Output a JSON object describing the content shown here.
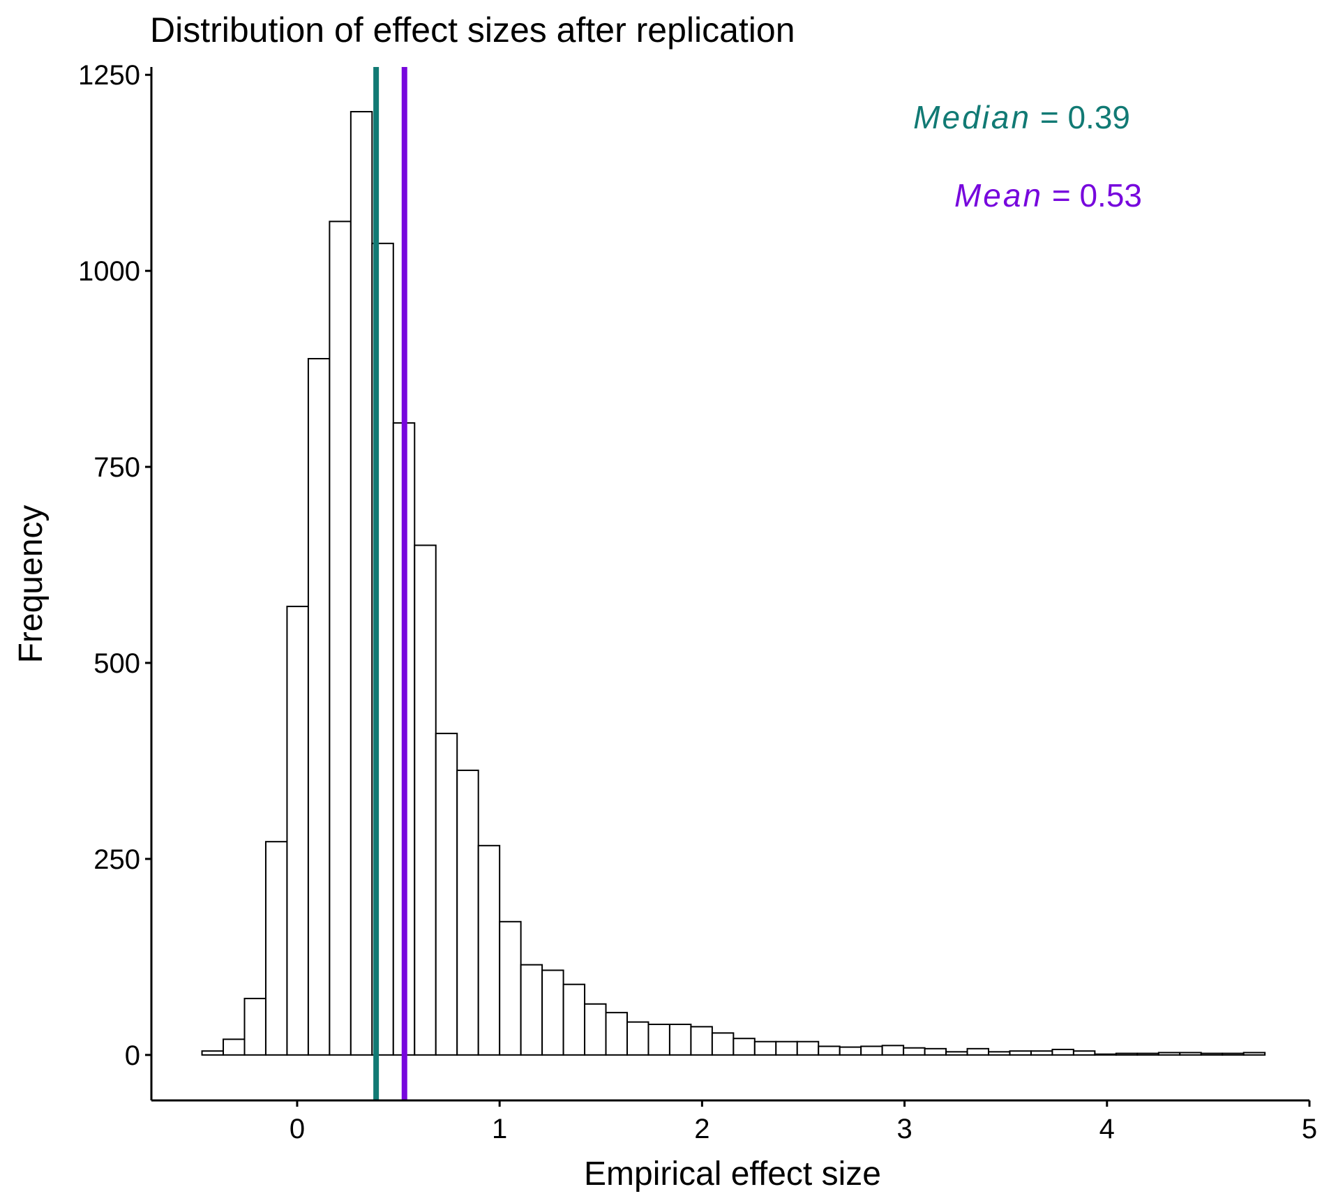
{
  "chart_data": {
    "type": "histogram",
    "title": "Distribution of effect sizes after replication",
    "xlabel": "Empirical effect size",
    "ylabel": "Frequency",
    "xlim": [
      -0.72,
      5.0
    ],
    "ylim": [
      -58,
      1260
    ],
    "x_ticks": [
      0,
      1,
      2,
      3,
      4,
      5
    ],
    "y_ticks": [
      0,
      250,
      500,
      750,
      1000,
      1250
    ],
    "grid": false,
    "bin_width": 0.105,
    "bin_starts": [
      -0.47,
      -0.365,
      -0.26,
      -0.155,
      -0.05,
      0.055,
      0.16,
      0.265,
      0.37,
      0.475,
      0.58,
      0.685,
      0.79,
      0.895,
      1.0,
      1.105,
      1.21,
      1.315,
      1.42,
      1.525,
      1.63,
      1.735,
      1.84,
      1.945,
      2.05,
      2.155,
      2.26,
      2.365,
      2.47,
      2.575,
      2.68,
      2.785,
      2.89,
      2.995,
      3.1,
      3.205,
      3.31,
      3.415,
      3.52,
      3.625,
      3.73,
      3.835,
      3.94,
      4.045,
      4.15,
      4.255,
      4.36,
      4.465,
      4.57,
      4.675
    ],
    "counts": [
      5,
      20,
      72,
      272,
      572,
      888,
      1063,
      1203,
      1035,
      806,
      650,
      410,
      363,
      267,
      170,
      115,
      108,
      90,
      65,
      54,
      42,
      39,
      39,
      36,
      28,
      21,
      17,
      17,
      17,
      11,
      10,
      11,
      12,
      9,
      8,
      4,
      8,
      4,
      5,
      5,
      7,
      5,
      1,
      2,
      2,
      3,
      3,
      2,
      2,
      3
    ],
    "reference_lines": [
      {
        "name": "Median",
        "value": 0.39,
        "color": "#117A74"
      },
      {
        "name": "Mean",
        "value": 0.53,
        "color": "#7707DD"
      }
    ],
    "annotations": {
      "median_label": "Median",
      "median_value": " = 0.39",
      "mean_label": "Mean",
      "mean_value": " = 0.53"
    }
  }
}
